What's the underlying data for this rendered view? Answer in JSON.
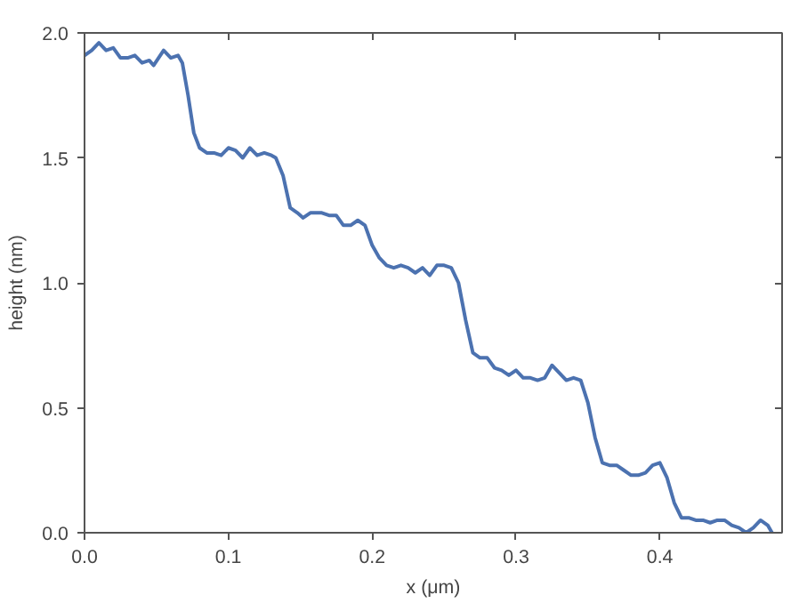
{
  "chart_data": {
    "type": "line",
    "xlabel": "x (μm)",
    "ylabel": "height (nm)",
    "xlim": [
      0,
      0.485
    ],
    "ylim": [
      0,
      2.0
    ],
    "xticks": [
      {
        "value": 0,
        "label": "0.0"
      },
      0.1,
      0.2,
      0.3,
      0.4
    ],
    "yticks": [
      {
        "value": 0,
        "label": "0.0"
      },
      0.5,
      {
        "value": 1,
        "label": "1.0"
      },
      1.5,
      {
        "value": 2,
        "label": "2.0"
      }
    ],
    "grid": false,
    "marker": "none",
    "line_style": "solid",
    "series": [
      {
        "color": "#4c72b0",
        "x": [
          0.0,
          0.005,
          0.01,
          0.015,
          0.02,
          0.025,
          0.03,
          0.035,
          0.04,
          0.045,
          0.048,
          0.055,
          0.06,
          0.065,
          0.068,
          0.072,
          0.076,
          0.08,
          0.085,
          0.09,
          0.095,
          0.1,
          0.105,
          0.11,
          0.115,
          0.12,
          0.125,
          0.13,
          0.133,
          0.138,
          0.143,
          0.148,
          0.152,
          0.157,
          0.165,
          0.17,
          0.175,
          0.18,
          0.185,
          0.19,
          0.195,
          0.2,
          0.205,
          0.21,
          0.215,
          0.22,
          0.225,
          0.23,
          0.235,
          0.24,
          0.245,
          0.25,
          0.255,
          0.26,
          0.265,
          0.27,
          0.275,
          0.28,
          0.285,
          0.29,
          0.295,
          0.3,
          0.305,
          0.31,
          0.315,
          0.32,
          0.325,
          0.33,
          0.335,
          0.34,
          0.345,
          0.35,
          0.355,
          0.36,
          0.365,
          0.37,
          0.375,
          0.38,
          0.385,
          0.39,
          0.395,
          0.4,
          0.405,
          0.41,
          0.415,
          0.42,
          0.425,
          0.43,
          0.435,
          0.44,
          0.445,
          0.45,
          0.455,
          0.46,
          0.465,
          0.47,
          0.475,
          0.478
        ],
        "values": [
          1.91,
          1.93,
          1.96,
          1.93,
          1.94,
          1.9,
          1.9,
          1.91,
          1.88,
          1.89,
          1.87,
          1.93,
          1.9,
          1.91,
          1.88,
          1.75,
          1.6,
          1.54,
          1.52,
          1.52,
          1.51,
          1.54,
          1.53,
          1.5,
          1.54,
          1.51,
          1.52,
          1.51,
          1.5,
          1.43,
          1.3,
          1.28,
          1.26,
          1.28,
          1.28,
          1.27,
          1.27,
          1.23,
          1.23,
          1.25,
          1.23,
          1.15,
          1.1,
          1.07,
          1.06,
          1.07,
          1.06,
          1.04,
          1.06,
          1.03,
          1.07,
          1.07,
          1.06,
          1.0,
          0.85,
          0.72,
          0.7,
          0.7,
          0.66,
          0.65,
          0.63,
          0.65,
          0.62,
          0.62,
          0.61,
          0.62,
          0.67,
          0.64,
          0.61,
          0.62,
          0.61,
          0.52,
          0.38,
          0.28,
          0.27,
          0.27,
          0.25,
          0.23,
          0.23,
          0.24,
          0.27,
          0.28,
          0.22,
          0.12,
          0.06,
          0.06,
          0.05,
          0.05,
          0.04,
          0.05,
          0.05,
          0.03,
          0.02,
          0.0,
          0.02,
          0.05,
          0.03,
          0.0
        ]
      }
    ]
  }
}
